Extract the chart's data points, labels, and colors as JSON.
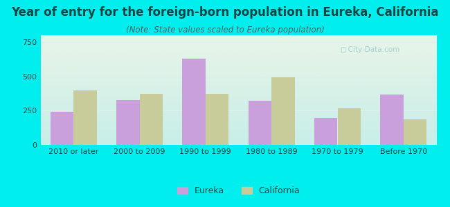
{
  "title": "Year of entry for the foreign-born population in Eureka, California",
  "subtitle": "(Note: State values scaled to Eureka population)",
  "categories": [
    "2010 or later",
    "2000 to 2009",
    "1990 to 1999",
    "1980 to 1989",
    "1970 to 1979",
    "Before 1970"
  ],
  "eureka_values": [
    240,
    325,
    630,
    320,
    195,
    365
  ],
  "california_values": [
    400,
    370,
    370,
    495,
    265,
    185
  ],
  "eureka_color": "#c9a0dc",
  "california_color": "#c8cc9a",
  "background_outer": "#00eeee",
  "background_inner_top": "#e8f5e8",
  "background_inner_bottom": "#c8eee8",
  "ylim": [
    0,
    800
  ],
  "yticks": [
    0,
    250,
    500,
    750
  ],
  "bar_width": 0.35,
  "legend_eureka": "Eureka",
  "legend_california": "California",
  "title_fontsize": 12,
  "subtitle_fontsize": 8.5,
  "tick_fontsize": 8,
  "legend_fontsize": 9,
  "title_color": "#004444",
  "subtitle_color": "#336666",
  "tick_color": "#004444",
  "watermark_color": "#99cccc",
  "grid_color": "#ddeeee"
}
